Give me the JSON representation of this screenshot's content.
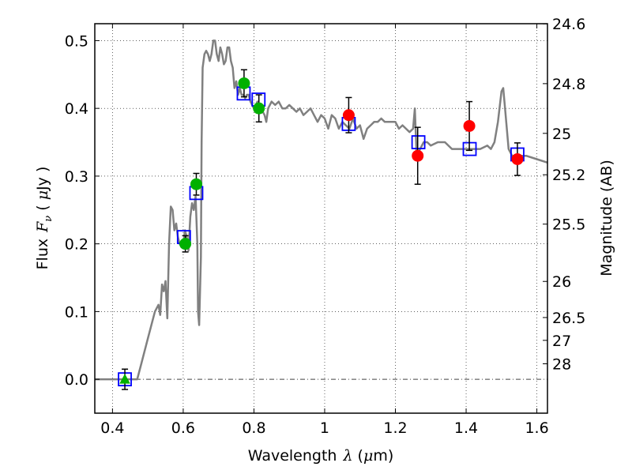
{
  "chart_data": {
    "type": "scatter",
    "xlabel_text": "Wavelength",
    "xlabel_symbol": "λ",
    "xlabel_unit_open": " (",
    "xlabel_unit_mu": "μ",
    "xlabel_unit_rest": "m)",
    "ylabel_text": "Flux",
    "ylabel_symbol": "F",
    "ylabel_sub": "ν",
    "ylabel_unit_open": " ( ",
    "ylabel_unit_mu": "μ",
    "ylabel_unit_rest": "Jy )",
    "y2label": "Magnitude (AB)",
    "xlim": [
      0.35,
      1.63
    ],
    "ylim": [
      -0.05,
      0.525
    ],
    "grid": true,
    "x_ticks": [
      0.4,
      0.6,
      0.8,
      1.0,
      1.2,
      1.4,
      1.6
    ],
    "x_tick_labels": [
      "0.4",
      "0.6",
      "0.8",
      "1",
      "1.2",
      "1.4",
      "1.6"
    ],
    "y_ticks": [
      0.0,
      0.1,
      0.2,
      0.3,
      0.4,
      0.5
    ],
    "y_tick_labels": [
      "0.0",
      "0.1",
      "0.2",
      "0.3",
      "0.4",
      "0.5"
    ],
    "y2_ticks": [
      {
        "label": "24.6",
        "flux": 0.5248
      },
      {
        "label": "24.8",
        "flux": 0.4365
      },
      {
        "label": "25",
        "flux": 0.3631
      },
      {
        "label": "25.2",
        "flux": 0.302
      },
      {
        "label": "25.5",
        "flux": 0.2291
      },
      {
        "label": "26",
        "flux": 0.1445
      },
      {
        "label": "26.5",
        "flux": 0.0912
      },
      {
        "label": "27",
        "flux": 0.0575
      },
      {
        "label": "28",
        "flux": 0.0229
      }
    ],
    "series": [
      {
        "name": "SED model",
        "kind": "line",
        "color": "#808080",
        "x": [
          0.35,
          0.44,
          0.47,
          0.48,
          0.5,
          0.52,
          0.53,
          0.535,
          0.54,
          0.545,
          0.55,
          0.555,
          0.56,
          0.565,
          0.57,
          0.575,
          0.58,
          0.585,
          0.59,
          0.595,
          0.6,
          0.605,
          0.61,
          0.615,
          0.62,
          0.625,
          0.63,
          0.635,
          0.64,
          0.642,
          0.645,
          0.65,
          0.652,
          0.655,
          0.66,
          0.665,
          0.67,
          0.675,
          0.68,
          0.685,
          0.69,
          0.695,
          0.7,
          0.705,
          0.71,
          0.715,
          0.72,
          0.725,
          0.73,
          0.735,
          0.74,
          0.745,
          0.75,
          0.755,
          0.76,
          0.765,
          0.77,
          0.775,
          0.78,
          0.785,
          0.79,
          0.8,
          0.81,
          0.82,
          0.83,
          0.835,
          0.84,
          0.85,
          0.86,
          0.87,
          0.88,
          0.89,
          0.9,
          0.91,
          0.92,
          0.93,
          0.94,
          0.95,
          0.96,
          0.97,
          0.98,
          0.99,
          1.0,
          1.01,
          1.02,
          1.03,
          1.04,
          1.05,
          1.06,
          1.07,
          1.08,
          1.09,
          1.1,
          1.11,
          1.12,
          1.13,
          1.14,
          1.15,
          1.16,
          1.17,
          1.18,
          1.19,
          1.2,
          1.21,
          1.22,
          1.23,
          1.24,
          1.25,
          1.255,
          1.26,
          1.27,
          1.28,
          1.29,
          1.3,
          1.32,
          1.34,
          1.36,
          1.38,
          1.4,
          1.42,
          1.44,
          1.46,
          1.47,
          1.48,
          1.49,
          1.5,
          1.505,
          1.51,
          1.52,
          1.53,
          1.55,
          1.57,
          1.6,
          1.63
        ],
        "y": [
          0.0,
          0.0,
          0.0,
          0.02,
          0.06,
          0.1,
          0.11,
          0.095,
          0.14,
          0.13,
          0.145,
          0.09,
          0.2,
          0.255,
          0.25,
          0.22,
          0.23,
          0.21,
          0.2,
          0.195,
          0.2,
          0.22,
          0.21,
          0.19,
          0.24,
          0.26,
          0.25,
          0.27,
          0.2,
          0.1,
          0.08,
          0.18,
          0.35,
          0.46,
          0.48,
          0.485,
          0.48,
          0.47,
          0.48,
          0.5,
          0.5,
          0.48,
          0.47,
          0.49,
          0.48,
          0.465,
          0.47,
          0.49,
          0.49,
          0.47,
          0.46,
          0.43,
          0.44,
          0.42,
          0.43,
          0.42,
          0.42,
          0.415,
          0.42,
          0.42,
          0.41,
          0.4,
          0.41,
          0.4,
          0.39,
          0.38,
          0.4,
          0.41,
          0.405,
          0.41,
          0.4,
          0.4,
          0.405,
          0.4,
          0.395,
          0.4,
          0.39,
          0.395,
          0.4,
          0.39,
          0.38,
          0.39,
          0.385,
          0.37,
          0.39,
          0.385,
          0.37,
          0.38,
          0.375,
          0.37,
          0.385,
          0.37,
          0.375,
          0.355,
          0.37,
          0.375,
          0.38,
          0.38,
          0.385,
          0.38,
          0.38,
          0.38,
          0.38,
          0.37,
          0.375,
          0.37,
          0.365,
          0.37,
          0.4,
          0.33,
          0.34,
          0.35,
          0.35,
          0.345,
          0.35,
          0.35,
          0.34,
          0.34,
          0.34,
          0.34,
          0.34,
          0.345,
          0.34,
          0.35,
          0.38,
          0.425,
          0.43,
          0.4,
          0.34,
          0.33,
          0.33,
          0.33,
          0.325,
          0.32
        ]
      },
      {
        "name": "model bandpass fluxes",
        "kind": "open-square",
        "color": "#0000ff",
        "x": [
          0.435,
          0.602,
          0.637,
          0.771,
          0.813,
          1.068,
          1.265,
          1.41,
          1.545
        ],
        "y": [
          0.0,
          0.21,
          0.275,
          0.422,
          0.413,
          0.377,
          0.35,
          0.34,
          0.332
        ]
      },
      {
        "name": "observed (green)",
        "kind": "filled-circle",
        "color": "#00b000",
        "x": [
          0.606,
          0.637,
          0.772,
          0.814
        ],
        "y": [
          0.2,
          0.288,
          0.437,
          0.4
        ],
        "yerr": [
          0.012,
          0.016,
          0.02,
          0.02
        ]
      },
      {
        "name": "observed (red)",
        "kind": "filled-circle",
        "color": "#ff0000",
        "x": [
          1.068,
          1.263,
          1.409,
          1.545
        ],
        "y": [
          0.39,
          0.33,
          0.374,
          0.325
        ],
        "yerr": [
          0.026,
          0.042,
          0.036,
          0.024
        ]
      },
      {
        "name": "upper limit",
        "kind": "filled-triangle",
        "color": "#00b000",
        "x": [
          0.435
        ],
        "y": [
          0.0
        ],
        "yerr": [
          0.015
        ]
      }
    ]
  }
}
